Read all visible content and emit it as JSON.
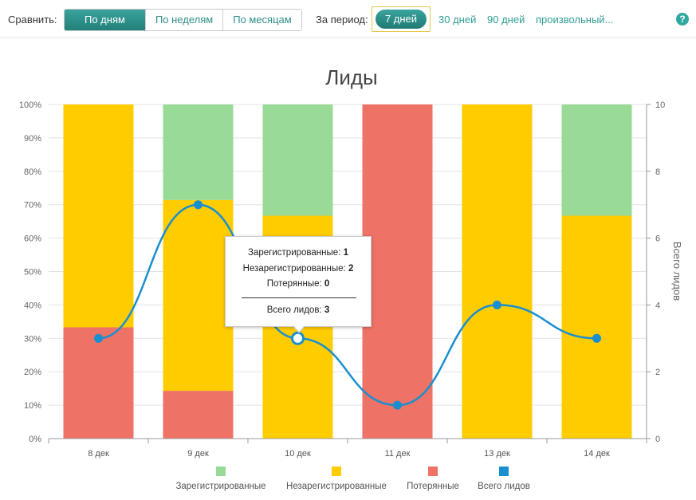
{
  "toolbar": {
    "compare_label": "Сравнить:",
    "compare_options": [
      "По дням",
      "По неделям",
      "По месяцам"
    ],
    "period_label": "За период:",
    "period_active": "7 дней",
    "period_links": [
      "30 дней",
      "90 дней",
      "произвольный..."
    ],
    "help": "?"
  },
  "tooltip": {
    "lines": [
      {
        "label": "Зарегистрированные:",
        "value": "1"
      },
      {
        "label": "Незарегистрированные:",
        "value": "2"
      },
      {
        "label": "Потерянные:",
        "value": "0"
      }
    ],
    "total_label": "Всего лидов:",
    "total_value": "3"
  },
  "colors": {
    "registered": "#98da96",
    "unregistered": "#ffcc00",
    "lost": "#ee7266",
    "total": "#1a8fd0",
    "accent": "#2e9c94"
  },
  "chart_data": {
    "type": "bar",
    "stacked": "percent",
    "title": "Лиды",
    "categories": [
      "8 дек",
      "9 дек",
      "10 дек",
      "11 дек",
      "13 дек",
      "14 дек"
    ],
    "series": [
      {
        "name": "Потерянные",
        "values": [
          33.3,
          14.3,
          0,
          100,
          0,
          0
        ]
      },
      {
        "name": "Незарегистрированные",
        "values": [
          66.7,
          57.1,
          66.7,
          0,
          100,
          66.7
        ]
      },
      {
        "name": "Зарегистрированные",
        "values": [
          0,
          28.6,
          33.3,
          0,
          0,
          33.3
        ]
      }
    ],
    "line_series": {
      "name": "Всего лидов",
      "values": [
        3,
        7,
        3,
        1,
        4,
        3
      ],
      "axis": "right"
    },
    "y_left": {
      "ticks": [
        "0%",
        "10%",
        "20%",
        "30%",
        "40%",
        "50%",
        "60%",
        "70%",
        "80%",
        "90%",
        "100%"
      ],
      "range": [
        0,
        100
      ]
    },
    "y_right": {
      "label": "Всего лидов",
      "ticks": [
        "0",
        "2",
        "4",
        "6",
        "8",
        "10"
      ],
      "range": [
        0,
        10
      ]
    },
    "legend": [
      "Зарегистрированные",
      "Незарегистрированные",
      "Потерянные",
      "Всего лидов"
    ],
    "highlighted_point": 2
  }
}
